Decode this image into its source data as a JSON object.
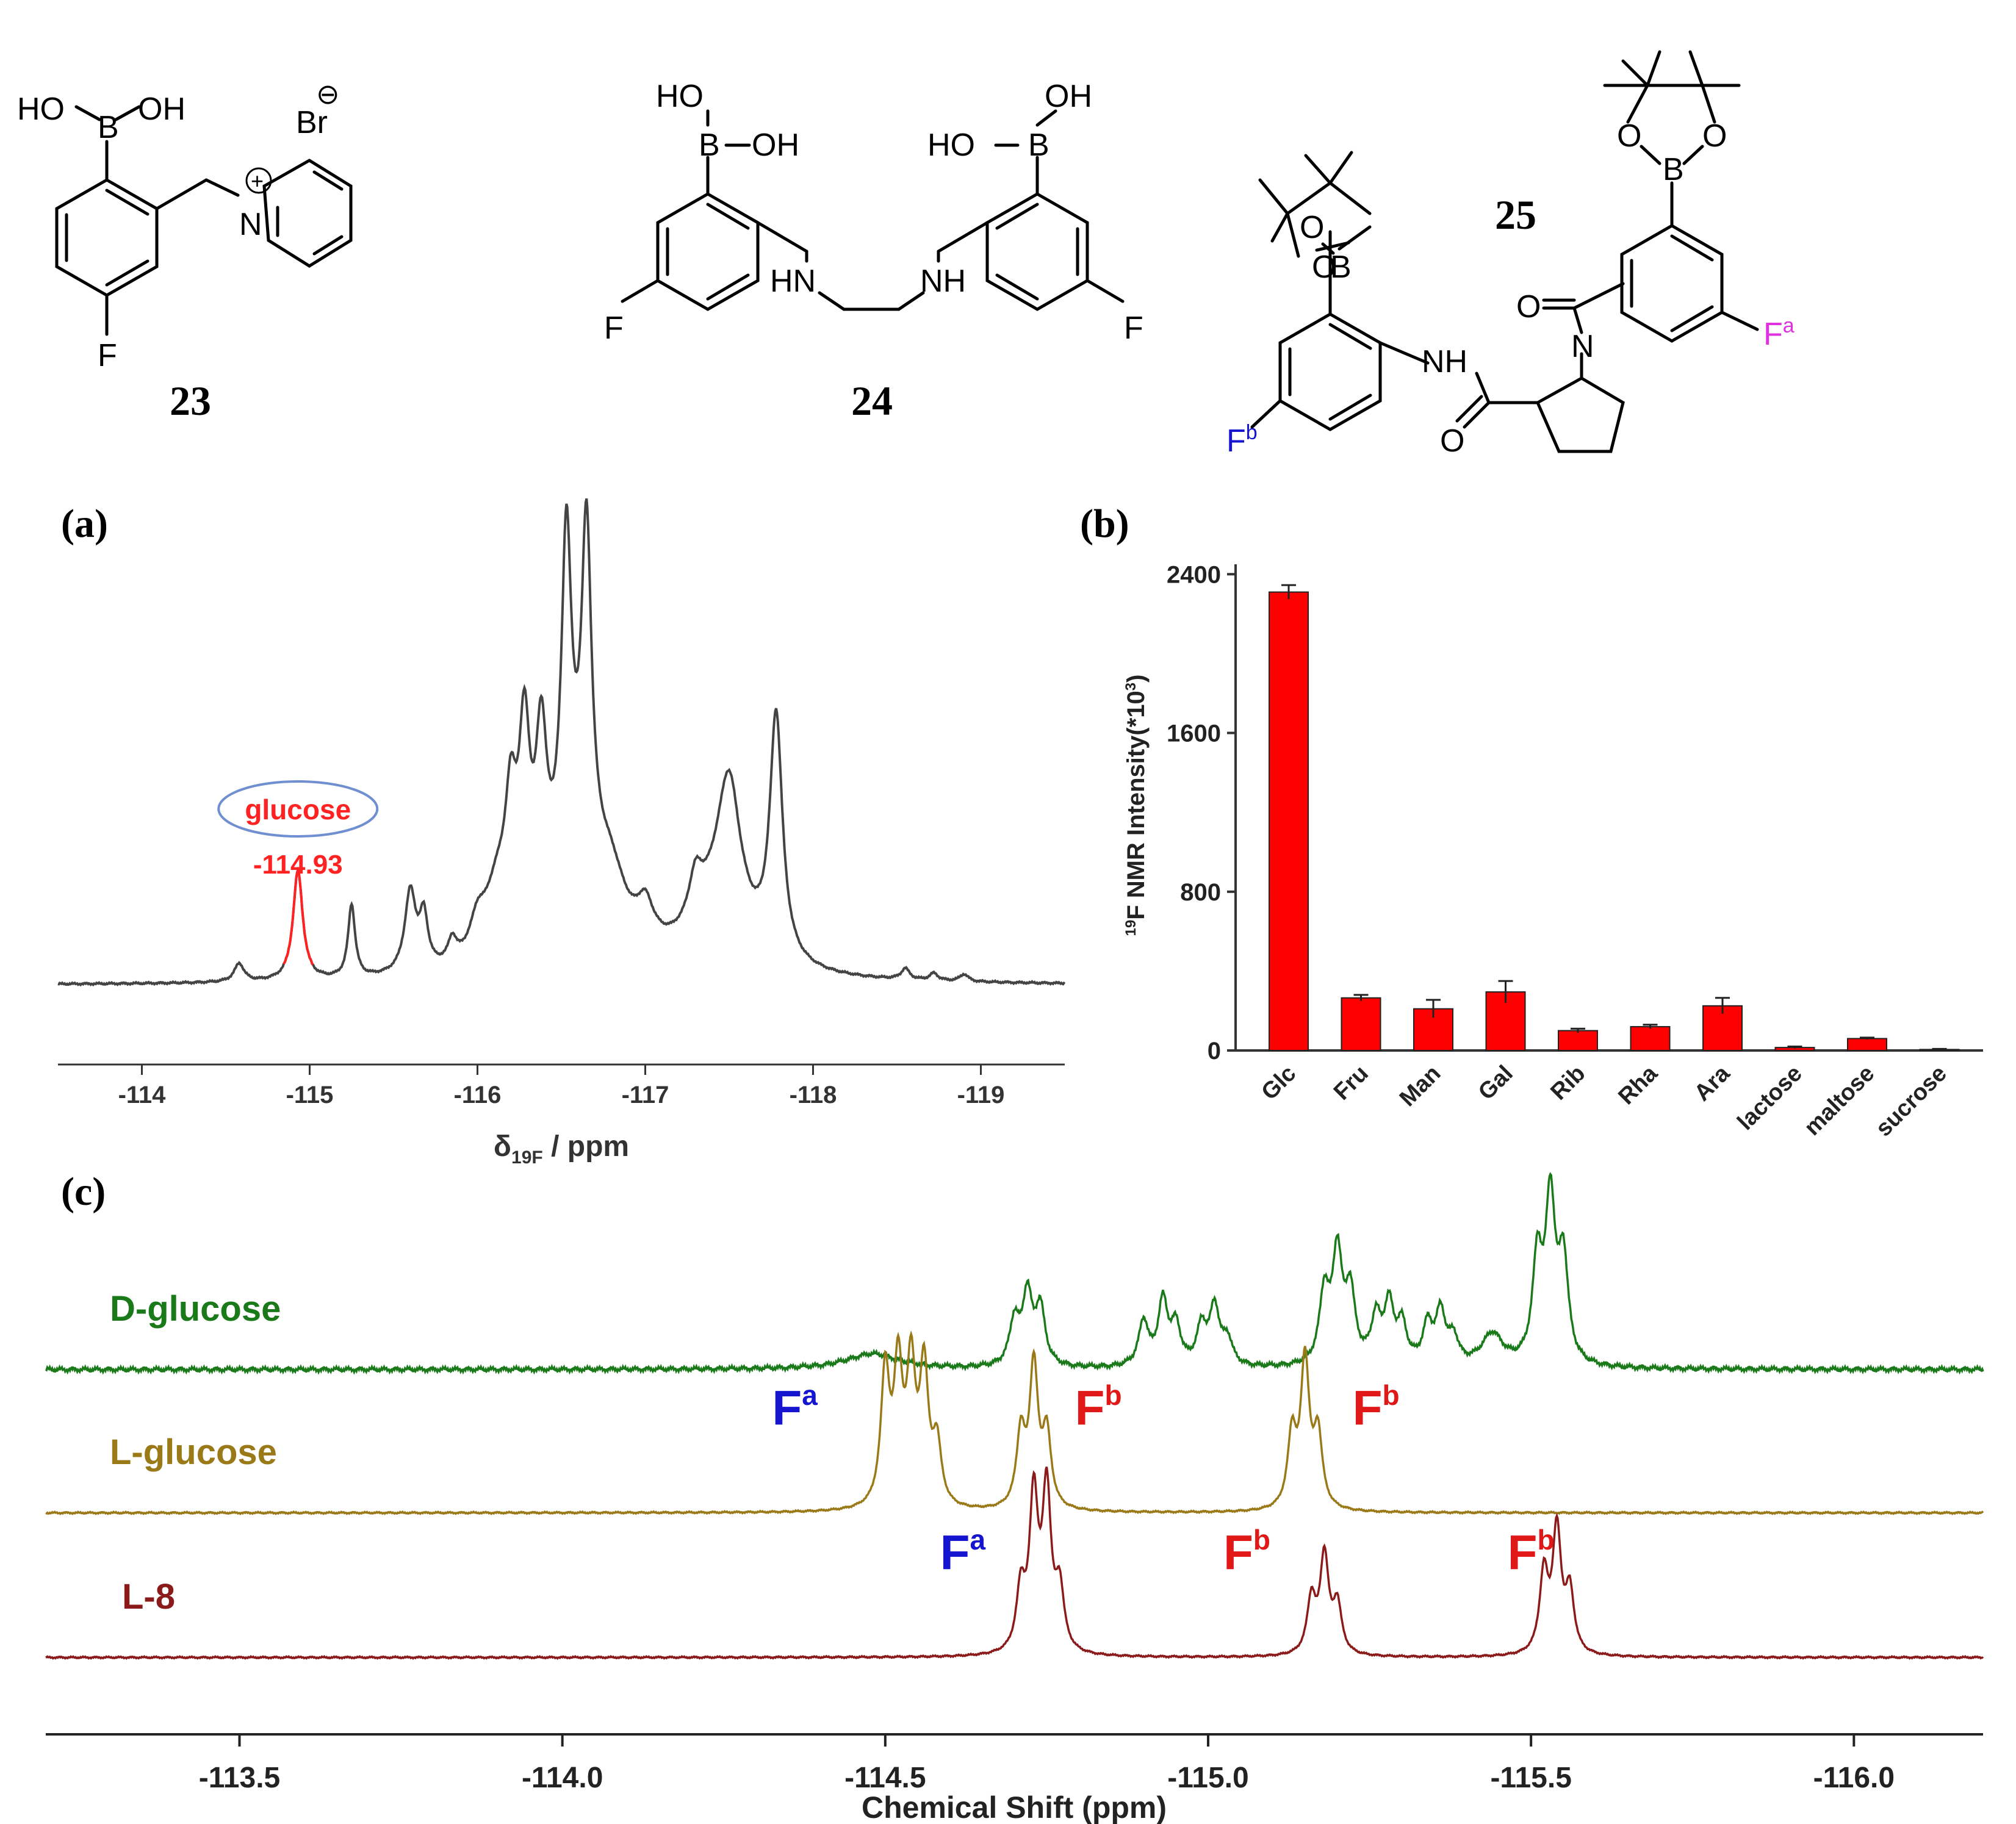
{
  "structures": {
    "s23": {
      "label": "23",
      "atoms": {
        "ho": "HO",
        "b": "B",
        "oh": "OH",
        "br": "Br",
        "minus": "⊖",
        "n": "N",
        "plus": "+",
        "f": "F"
      }
    },
    "s24": {
      "label": "24",
      "atoms": {
        "ho_l": "HO",
        "b_l": "B",
        "oh_l": "OH",
        "hn": "HN",
        "nh": "NH",
        "ho_r": "HO",
        "b_r": "B",
        "oh_r": "OH",
        "f_l": "F",
        "f_r": "F"
      }
    },
    "s25": {
      "label": "25",
      "atoms": {
        "o1": "O",
        "o2": "O",
        "b1": "B",
        "o3": "O",
        "o4": "O",
        "b2": "B",
        "nh": "NH",
        "o5": "O",
        "o6": "O",
        "n": "N",
        "fa": "F",
        "fa_sup": "a",
        "fb": "F",
        "fb_sup": "b"
      }
    }
  },
  "panels": {
    "a": "(a)",
    "b": "(b)",
    "c": "(c)"
  },
  "colors": {
    "spectrum_a": "#444444",
    "glucose_peak": "#ff2222",
    "glucose_ellipse": "#6f8fd0",
    "bar": "#ff0000",
    "d_glucose": "#1a7a1a",
    "l_glucose": "#9a7a18",
    "l8": "#8b1a1a",
    "fa_label": "#1515d0",
    "fb_label": "#e01818",
    "fa_struct": "#e030e0",
    "fb_struct": "#1515d0"
  },
  "chart_data": [
    {
      "type": "line",
      "panel": "a",
      "xlabel": "δ19F / ppm",
      "xlabel_main": "δ",
      "xlabel_sub": "19F",
      "xlabel_unit": " / ppm",
      "xlim": [
        -113.5,
        -119.5
      ],
      "xticks": [
        "-114",
        "-115",
        "-116",
        "-117",
        "-118",
        "-119"
      ],
      "tick_values": [
        -114,
        -115,
        -116,
        -117,
        -118,
        -119
      ],
      "annotation": {
        "label": "glucose",
        "value_label": "-114.93",
        "x": -114.93
      },
      "baseline": 0,
      "peaks": [
        {
          "x": -114.58,
          "h": 0.05,
          "w": 0.035
        },
        {
          "x": -114.93,
          "h": 0.3,
          "w": 0.035
        },
        {
          "x": -115.25,
          "h": 0.2,
          "w": 0.025
        },
        {
          "x": -115.6,
          "h": 0.22,
          "w": 0.04
        },
        {
          "x": -115.68,
          "h": 0.14,
          "w": 0.03
        },
        {
          "x": -115.85,
          "h": 0.06,
          "w": 0.03
        },
        {
          "x": -116.0,
          "h": 0.08,
          "w": 0.05
        },
        {
          "x": -116.12,
          "h": 0.18,
          "w": 0.1
        },
        {
          "x": -116.2,
          "h": 0.3,
          "w": 0.04
        },
        {
          "x": -116.28,
          "h": 0.5,
          "w": 0.04
        },
        {
          "x": -116.38,
          "h": 0.45,
          "w": 0.04
        },
        {
          "x": -116.53,
          "h": 0.85,
          "w": 0.035
        },
        {
          "x": -116.65,
          "h": 0.85,
          "w": 0.035
        },
        {
          "x": -116.6,
          "h": 0.35,
          "w": 0.2
        },
        {
          "x": -116.8,
          "h": 0.12,
          "w": 0.1
        },
        {
          "x": -117.0,
          "h": 0.1,
          "w": 0.06
        },
        {
          "x": -117.3,
          "h": 0.12,
          "w": 0.05
        },
        {
          "x": -117.5,
          "h": 0.35,
          "w": 0.08
        },
        {
          "x": -117.45,
          "h": 0.2,
          "w": 0.2
        },
        {
          "x": -117.78,
          "h": 0.66,
          "w": 0.045
        },
        {
          "x": -118.55,
          "h": 0.03,
          "w": 0.03
        },
        {
          "x": -118.72,
          "h": 0.02,
          "w": 0.03
        },
        {
          "x": -118.9,
          "h": 0.02,
          "w": 0.03
        }
      ]
    },
    {
      "type": "bar",
      "panel": "b",
      "ylabel": "19F NMR Intensity(*10³)",
      "ylabel_sup": "19",
      "ylabel_main": "F NMR Intensity(*10",
      "ylabel_exp": "3",
      "ylabel_close": ")",
      "ylim": [
        0,
        2450
      ],
      "yticks": [
        0,
        800,
        1600,
        2400
      ],
      "categories": [
        "Glc",
        "Fru",
        "Man",
        "Gal",
        "Rib",
        "Rha",
        "Ara",
        "lactose",
        "maltose",
        "sucrose"
      ],
      "values": [
        2310,
        265,
        210,
        295,
        100,
        120,
        225,
        15,
        60,
        5
      ],
      "errors": [
        35,
        15,
        45,
        55,
        10,
        10,
        40,
        5,
        5,
        3
      ]
    },
    {
      "type": "line",
      "panel": "c",
      "xlabel": "Chemical Shift (ppm)",
      "xlim": [
        -113.2,
        -116.2
      ],
      "xticks": [
        "-113.5",
        "-114.0",
        "-114.5",
        "-115.0",
        "-115.5",
        "-116.0"
      ],
      "tick_values": [
        -113.5,
        -114.0,
        -114.5,
        -115.0,
        -115.5,
        -116.0
      ],
      "series": [
        {
          "name": "D-glucose",
          "peaks": [
            {
              "x": -114.48,
              "h": 0.12,
              "w": 0.05
            },
            {
              "x": -114.7,
              "h": 0.35,
              "w": 0.009
            },
            {
              "x": -114.72,
              "h": 0.55,
              "w": 0.009
            },
            {
              "x": -114.74,
              "h": 0.45,
              "w": 0.009
            },
            {
              "x": -114.9,
              "h": 0.35,
              "w": 0.009
            },
            {
              "x": -114.93,
              "h": 0.5,
              "w": 0.009
            },
            {
              "x": -114.95,
              "h": 0.3,
              "w": 0.009
            },
            {
              "x": -114.99,
              "h": 0.3,
              "w": 0.009
            },
            {
              "x": -115.01,
              "h": 0.45,
              "w": 0.009
            },
            {
              "x": -115.03,
              "h": 0.2,
              "w": 0.009
            },
            {
              "x": -115.18,
              "h": 0.55,
              "w": 0.009
            },
            {
              "x": -115.2,
              "h": 0.85,
              "w": 0.009
            },
            {
              "x": -115.22,
              "h": 0.55,
              "w": 0.009
            },
            {
              "x": -115.26,
              "h": 0.35,
              "w": 0.009
            },
            {
              "x": -115.28,
              "h": 0.45,
              "w": 0.009
            },
            {
              "x": -115.3,
              "h": 0.3,
              "w": 0.009
            },
            {
              "x": -115.34,
              "h": 0.3,
              "w": 0.009
            },
            {
              "x": -115.36,
              "h": 0.4,
              "w": 0.009
            },
            {
              "x": -115.38,
              "h": 0.2,
              "w": 0.009
            },
            {
              "x": -115.44,
              "h": 0.25,
              "w": 0.02
            },
            {
              "x": -115.51,
              "h": 0.8,
              "w": 0.009
            },
            {
              "x": -115.53,
              "h": 1.25,
              "w": 0.009
            },
            {
              "x": -115.55,
              "h": 0.8,
              "w": 0.009
            }
          ]
        },
        {
          "name": "L-glucose",
          "peaks": [
            {
              "x": -114.5,
              "h": 1.1,
              "w": 0.008
            },
            {
              "x": -114.52,
              "h": 1.1,
              "w": 0.008
            },
            {
              "x": -114.54,
              "h": 1.1,
              "w": 0.008
            },
            {
              "x": -114.56,
              "h": 1.1,
              "w": 0.008
            },
            {
              "x": -114.58,
              "h": 0.5,
              "w": 0.008
            },
            {
              "x": -114.71,
              "h": 0.6,
              "w": 0.008
            },
            {
              "x": -114.73,
              "h": 1.15,
              "w": 0.008
            },
            {
              "x": -114.75,
              "h": 0.6,
              "w": 0.008
            },
            {
              "x": -115.13,
              "h": 0.6,
              "w": 0.008
            },
            {
              "x": -115.15,
              "h": 1.2,
              "w": 0.008
            },
            {
              "x": -115.17,
              "h": 0.6,
              "w": 0.008
            }
          ]
        },
        {
          "name": "L-8",
          "peaks": [
            {
              "x": -114.71,
              "h": 0.5,
              "w": 0.008
            },
            {
              "x": -114.73,
              "h": 1.25,
              "w": 0.008
            },
            {
              "x": -114.75,
              "h": 1.3,
              "w": 0.008
            },
            {
              "x": -114.77,
              "h": 0.5,
              "w": 0.008
            },
            {
              "x": -115.16,
              "h": 0.45,
              "w": 0.008
            },
            {
              "x": -115.18,
              "h": 0.8,
              "w": 0.008
            },
            {
              "x": -115.2,
              "h": 0.4,
              "w": 0.008
            },
            {
              "x": -115.52,
              "h": 0.65,
              "w": 0.008
            },
            {
              "x": -115.54,
              "h": 1.0,
              "w": 0.008
            },
            {
              "x": -115.56,
              "h": 0.5,
              "w": 0.008
            }
          ]
        }
      ],
      "annotations": [
        {
          "series": "L-glucose",
          "main": "F",
          "sup": "a",
          "color": "fa_label",
          "x": -114.36
        },
        {
          "series": "L-glucose",
          "main": "F",
          "sup": "b",
          "color": "fb_label",
          "x": -114.83
        },
        {
          "series": "L-glucose",
          "main": "F",
          "sup": "b",
          "color": "fb_label",
          "x": -115.26
        },
        {
          "series": "L-8",
          "main": "F",
          "sup": "a",
          "color": "fa_label",
          "x": -114.62
        },
        {
          "series": "L-8",
          "main": "F",
          "sup": "b",
          "color": "fb_label",
          "x": -115.06
        },
        {
          "series": "L-8",
          "main": "F",
          "sup": "b",
          "color": "fb_label",
          "x": -115.5
        }
      ]
    }
  ]
}
